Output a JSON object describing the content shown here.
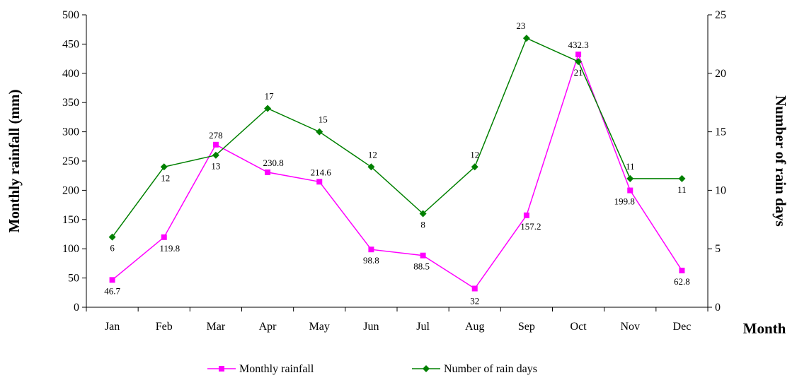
{
  "chart_data": {
    "type": "line",
    "title": "",
    "xlabel": "Month",
    "ylabel": "Monthly rainfall (mm)",
    "y2label": "Number of rain days",
    "categories": [
      "Jan",
      "Feb",
      "Mar",
      "Apr",
      "May",
      "Jun",
      "Jul",
      "Aug",
      "Sep",
      "Oct",
      "Nov",
      "Dec"
    ],
    "ylim": [
      0,
      500
    ],
    "y2lim": [
      0,
      25
    ],
    "yticks": [
      0,
      50,
      100,
      150,
      200,
      250,
      300,
      350,
      400,
      450,
      500
    ],
    "y2ticks": [
      0,
      5,
      10,
      15,
      20,
      25
    ],
    "grid": false,
    "legend_position": "bottom-center",
    "series": [
      {
        "name": "Monthly rainfall",
        "axis": "left",
        "color": "#ff00ff",
        "marker": "square",
        "values": [
          46.7,
          119.8,
          278,
          230.8,
          214.6,
          98.8,
          88.5,
          32,
          157.2,
          432.3,
          199.8,
          62.8
        ],
        "labels": [
          "46.7",
          "119.8",
          "278",
          "230.8",
          "214.6",
          "98.8",
          "88.5",
          "32",
          "157.2",
          "432.3",
          "199.8",
          "62.8"
        ]
      },
      {
        "name": "Number of rain days",
        "axis": "right",
        "color": "#008000",
        "marker": "diamond",
        "values": [
          6,
          12,
          13,
          17,
          15,
          12,
          8,
          12,
          23,
          21,
          11,
          11
        ],
        "labels": [
          "6",
          "12",
          "13",
          "17",
          "15",
          "12",
          "8",
          "12",
          "23",
          "21",
          "11",
          "11"
        ]
      }
    ]
  }
}
